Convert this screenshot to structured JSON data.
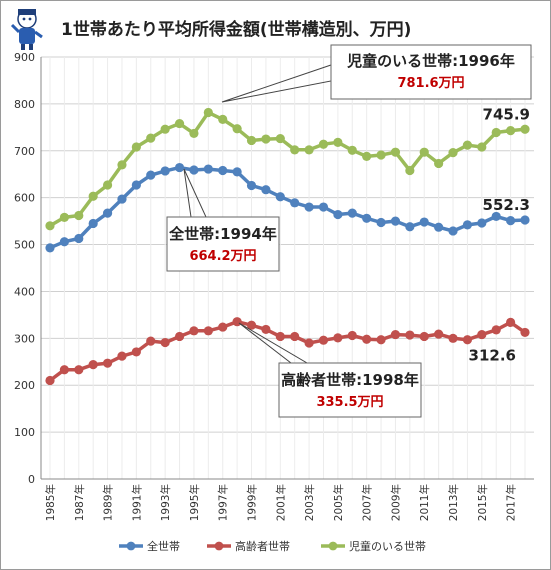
{
  "chart_data": {
    "type": "line",
    "title": "1世帯あたり平均所得金額(世帯構造別、万円)",
    "xlabel": "",
    "ylabel": "",
    "ylim": [
      0,
      900
    ],
    "yticks": [
      0,
      100,
      200,
      300,
      400,
      500,
      600,
      700,
      800,
      900
    ],
    "grid": true,
    "legend": "bottom",
    "x": [
      1985,
      1986,
      1987,
      1988,
      1989,
      1990,
      1991,
      1992,
      1993,
      1994,
      1995,
      1996,
      1997,
      1998,
      1999,
      2000,
      2001,
      2002,
      2003,
      2004,
      2005,
      2006,
      2007,
      2008,
      2009,
      2010,
      2011,
      2012,
      2013,
      2014,
      2015,
      2016,
      2017,
      2018
    ],
    "x_tick_labels": [
      "1985年",
      "1987年",
      "1989年",
      "1991年",
      "1993年",
      "1995年",
      "1997年",
      "1999年",
      "2001年",
      "2003年",
      "2005年",
      "2007年",
      "2009年",
      "2011年",
      "2013年",
      "2015年",
      "2017年"
    ],
    "x_tick_years": [
      1985,
      1987,
      1989,
      1991,
      1993,
      1995,
      1997,
      1999,
      2001,
      2003,
      2005,
      2007,
      2009,
      2011,
      2013,
      2015,
      2017
    ],
    "series": [
      {
        "name": "全世帯",
        "color": "#4f81bd",
        "values": [
          493,
          506,
          513,
          545,
          567,
          597,
          627,
          648,
          657,
          664.2,
          659,
          661,
          658,
          655,
          626,
          617,
          602,
          589,
          580,
          580,
          564,
          567,
          556,
          547,
          550,
          538,
          548,
          537,
          529,
          542,
          546,
          560,
          551,
          552.3
        ]
      },
      {
        "name": "高齢者世帯",
        "color": "#c0504d",
        "values": [
          210,
          233,
          233,
          244,
          247,
          262,
          271,
          294,
          291,
          304,
          316,
          316,
          324,
          335.5,
          328,
          319,
          304,
          304,
          290,
          296,
          301,
          306,
          298,
          297,
          308,
          307,
          304,
          309,
          300,
          297,
          308,
          318,
          334,
          312.6
        ]
      },
      {
        "name": "児童のいる世帯",
        "color": "#9bbb59",
        "values": [
          540,
          558,
          562,
          603,
          627,
          670,
          708,
          727,
          746,
          758,
          737,
          781.6,
          767,
          747,
          722,
          725,
          726,
          702,
          702,
          714,
          718,
          701,
          688,
          691,
          697,
          658,
          697,
          673,
          696,
          712,
          708,
          739,
          743,
          745.9
        ]
      }
    ],
    "value_labels": [
      {
        "series": 0,
        "text": "552.3"
      },
      {
        "series": 2,
        "text": "745.9"
      },
      {
        "series": 1,
        "text": "312.6"
      }
    ],
    "callouts": [
      {
        "title": "児童のいる世帯:1996年",
        "value": "781.6万円"
      },
      {
        "title": "全世帯:1994年",
        "value": "664.2万円"
      },
      {
        "title": "高齢者世帯:1998年",
        "value": "335.5万円"
      }
    ]
  },
  "colors": {
    "grid": "#d0d0d0",
    "axis": "#888888",
    "callout_value": "#c00000",
    "text": "#333333"
  },
  "mascot_icon": "cartoon-mascot-icon"
}
